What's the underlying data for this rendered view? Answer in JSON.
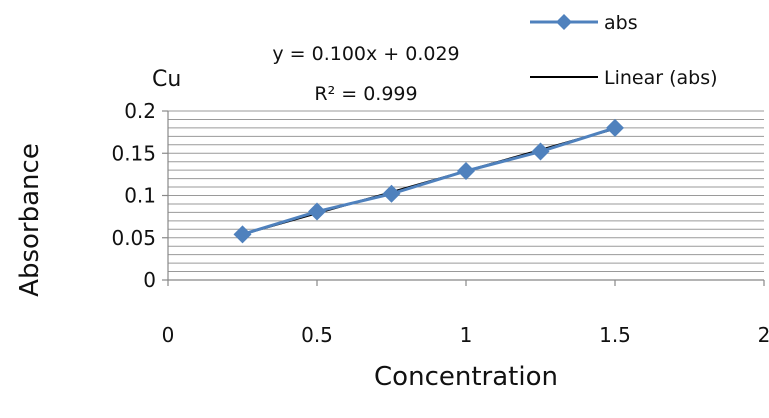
{
  "chart_data": {
    "type": "scatter",
    "title": "Cu",
    "xlabel": "Concentration",
    "ylabel": "Absorbance",
    "xlim": [
      0,
      2
    ],
    "ylim": [
      0,
      0.2
    ],
    "x_ticks": [
      0,
      0.5,
      1,
      1.5,
      2
    ],
    "y_ticks": [
      0,
      0.05,
      0.1,
      0.15,
      0.2
    ],
    "x_tick_labels": [
      "0",
      "0.5",
      "1",
      "1.5",
      "2"
    ],
    "y_tick_labels": [
      "0",
      "0.05",
      "0.1",
      "0.15",
      "0.2"
    ],
    "y_minor_step": 0.01,
    "grid": true,
    "legend_position": "top-right",
    "series": [
      {
        "name": "abs",
        "marker": "diamond",
        "color": "#4f81bd",
        "x": [
          0.25,
          0.5,
          0.75,
          1.0,
          1.25,
          1.5
        ],
        "y": [
          0.054,
          0.081,
          0.102,
          0.129,
          0.152,
          0.18
        ]
      }
    ],
    "trendline": {
      "name": "Linear (abs)",
      "color": "#000000",
      "slope": 0.1,
      "intercept": 0.029,
      "x_range": [
        0.25,
        1.5
      ]
    },
    "annotations": {
      "equation": "y = 0.100x + 0.029",
      "r2_label": "R² = 0.999"
    }
  }
}
